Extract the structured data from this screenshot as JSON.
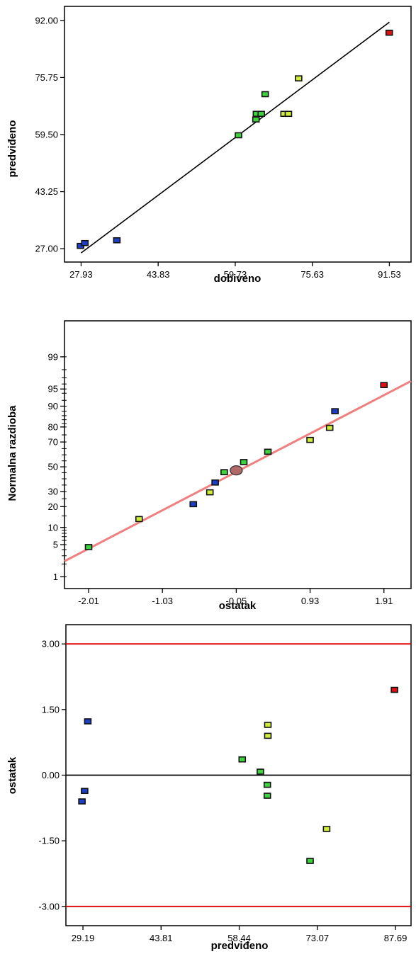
{
  "chart_data": [
    {
      "type": "scatter",
      "xlabel": "dobiveno",
      "ylabel": "predviđeno",
      "xticks": [
        "27.93",
        "43.83",
        "59.73",
        "75.63",
        "91.53"
      ],
      "yticks": [
        "92.00",
        "75.75",
        "59.50",
        "43.25",
        "27.00"
      ],
      "xlim": [
        24.5,
        96.0
      ],
      "ylim": [
        23.2,
        96.0
      ],
      "grid": false,
      "fit_line": {
        "color": "#000000",
        "from": [
          27.93,
          25.8
        ],
        "to": [
          91.53,
          91.5
        ]
      },
      "points": [
        {
          "x": 27.8,
          "y": 27.8,
          "color": "blue"
        },
        {
          "x": 28.7,
          "y": 28.6,
          "color": "blue"
        },
        {
          "x": 35.3,
          "y": 29.4,
          "color": "blue"
        },
        {
          "x": 60.4,
          "y": 59.3,
          "color": "green"
        },
        {
          "x": 64.0,
          "y": 63.8,
          "color": "green"
        },
        {
          "x": 64.1,
          "y": 65.4,
          "color": "green"
        },
        {
          "x": 65.1,
          "y": 65.4,
          "color": "green"
        },
        {
          "x": 65.9,
          "y": 71.0,
          "color": "green"
        },
        {
          "x": 69.8,
          "y": 65.4,
          "color": "yellowgreen"
        },
        {
          "x": 70.7,
          "y": 65.4,
          "color": "yellowgreen"
        },
        {
          "x": 72.8,
          "y": 75.5,
          "color": "yellowgreen"
        },
        {
          "x": 91.5,
          "y": 88.5,
          "color": "red"
        }
      ]
    },
    {
      "type": "scatter",
      "xlabel": "ostatak",
      "ylabel": "Normalna razdioba",
      "xticks": [
        "-2.01",
        "-1.03",
        "-0.05",
        "0.93",
        "1.91"
      ],
      "yticks": [
        "99",
        "95",
        "90",
        "80",
        "70",
        "50",
        "30",
        "20",
        "10",
        "5",
        "1"
      ],
      "yscale": "probability",
      "xlim": [
        -2.33,
        2.27
      ],
      "grid": false,
      "fit_line": {
        "color": "#f08080",
        "from": [
          -2.33,
          2.3
        ],
        "to": [
          2.27,
          96.5
        ]
      },
      "center_marker": {
        "x": -0.05,
        "y": 47
      },
      "points": [
        {
          "x": -2.01,
          "y": 4.5,
          "color": "green"
        },
        {
          "x": -1.34,
          "y": 13.5,
          "color": "yellowgreen"
        },
        {
          "x": -0.62,
          "y": 21.5,
          "color": "blue"
        },
        {
          "x": -0.4,
          "y": 29.5,
          "color": "yellowgreen"
        },
        {
          "x": -0.33,
          "y": 37.0,
          "color": "blue"
        },
        {
          "x": -0.21,
          "y": 45.5,
          "color": "green"
        },
        {
          "x": 0.05,
          "y": 54.0,
          "color": "green"
        },
        {
          "x": 0.37,
          "y": 62.5,
          "color": "green"
        },
        {
          "x": 0.93,
          "y": 71.5,
          "color": "yellowgreen"
        },
        {
          "x": 1.19,
          "y": 79.5,
          "color": "yellowgreen"
        },
        {
          "x": 1.26,
          "y": 88.0,
          "color": "blue"
        },
        {
          "x": 1.91,
          "y": 95.8,
          "color": "red"
        }
      ]
    },
    {
      "type": "scatter",
      "xlabel": "predviđeno",
      "ylabel": "ostatak",
      "xticks": [
        "29.19",
        "43.81",
        "58.44",
        "73.07",
        "87.69"
      ],
      "yticks": [
        "3.00",
        "1.50",
        "0.00",
        "-1.50",
        "-3.00"
      ],
      "xlim": [
        26.0,
        90.6
      ],
      "ylim": [
        -3.44,
        3.44
      ],
      "grid": false,
      "reference_lines": [
        {
          "y": 3.0,
          "color": "#dd0000"
        },
        {
          "y": 0.0,
          "color": "#000000"
        },
        {
          "y": -3.0,
          "color": "#dd0000"
        }
      ],
      "points": [
        {
          "x": 29.0,
          "y": -0.6,
          "color": "blue"
        },
        {
          "x": 29.5,
          "y": -0.36,
          "color": "blue"
        },
        {
          "x": 30.1,
          "y": 1.23,
          "color": "blue"
        },
        {
          "x": 59.0,
          "y": 0.36,
          "color": "green"
        },
        {
          "x": 62.4,
          "y": 0.08,
          "color": "green"
        },
        {
          "x": 63.7,
          "y": -0.22,
          "color": "green"
        },
        {
          "x": 63.7,
          "y": -0.47,
          "color": "green"
        },
        {
          "x": 63.8,
          "y": 0.9,
          "color": "yellowgreen"
        },
        {
          "x": 63.8,
          "y": 1.15,
          "color": "yellowgreen"
        },
        {
          "x": 71.7,
          "y": -1.96,
          "color": "green"
        },
        {
          "x": 74.8,
          "y": -1.23,
          "color": "yellowgreen"
        },
        {
          "x": 87.5,
          "y": 1.95,
          "color": "red"
        }
      ]
    }
  ],
  "colors": {
    "blue": "#1c3ec8",
    "green": "#3fd23f",
    "yellowgreen": "#cfee3a",
    "red": "#e01010",
    "marker_outline": "#111111",
    "normal_line": "#f08080",
    "center_marker_fill": "#b06868",
    "reference_red": "#dd0000"
  }
}
